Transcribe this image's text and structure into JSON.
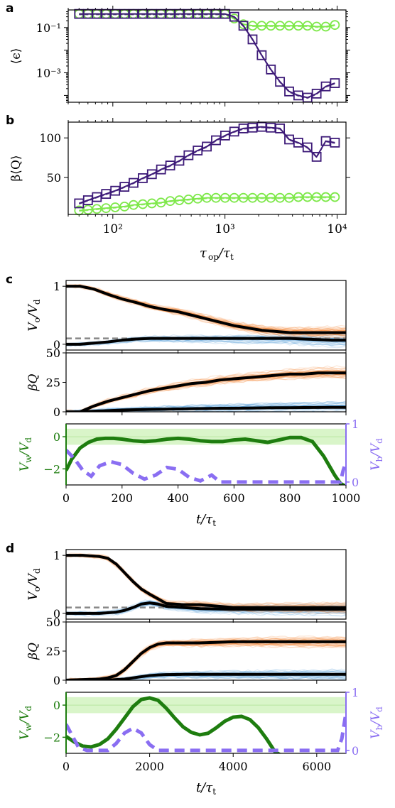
{
  "colors": {
    "green_marker": "#7ee84a",
    "purple_marker": "#3d1a78",
    "orange_traj": "#f47b20",
    "blue_traj": "#3d8fd1",
    "mean_line": "#000000",
    "dashed_gray": "#888888",
    "vw_green": "#1e7d0f",
    "vb_purple": "#8a6ef2",
    "band_green": "#d9f5c9"
  },
  "chart_data": [
    {
      "panel_label": "a",
      "type": "line",
      "xscale": "log",
      "yscale": "log",
      "ylabel": "⟨ϵ⟩",
      "ytick_labels": [
        "10⁻¹",
        "10⁻³"
      ],
      "xlim": [
        40,
        12000
      ],
      "ylim": [
        5e-05,
        0.6
      ],
      "x": [
        50,
        60,
        72,
        87,
        105,
        127,
        153,
        185,
        223,
        269,
        325,
        392,
        473,
        571,
        689,
        831,
        1003,
        1210,
        1460,
        1762,
        2126,
        2566,
        3096,
        3736,
        4508,
        5440,
        6564,
        7920,
        9557
      ],
      "series": [
        {
          "name": "",
          "marker": "circle",
          "color": "#7ee84a",
          "values": [
            0.4,
            0.4,
            0.4,
            0.4,
            0.4,
            0.4,
            0.4,
            0.4,
            0.4,
            0.4,
            0.4,
            0.4,
            0.4,
            0.4,
            0.4,
            0.4,
            0.4,
            0.25,
            0.14,
            0.12,
            0.12,
            0.12,
            0.12,
            0.12,
            0.12,
            0.12,
            0.11,
            0.11,
            0.13
          ]
        },
        {
          "name": "",
          "marker": "square",
          "color": "#3d1a78",
          "values": [
            0.4,
            0.4,
            0.4,
            0.4,
            0.4,
            0.4,
            0.4,
            0.4,
            0.4,
            0.4,
            0.4,
            0.4,
            0.4,
            0.4,
            0.4,
            0.4,
            0.4,
            0.3,
            0.12,
            0.03,
            0.006,
            0.0014,
            0.0004,
            0.00015,
            0.0001,
            8e-05,
            0.00012,
            0.00025,
            0.00035
          ]
        }
      ]
    },
    {
      "panel_label": "b",
      "type": "line",
      "xscale": "log",
      "ylabel": "β⟨Q⟩",
      "xlabel": "τop/τt",
      "xtick_labels": [
        "10²",
        "10³",
        "10⁴"
      ],
      "yticks": [
        50,
        100
      ],
      "xlim": [
        40,
        12000
      ],
      "ylim": [
        3,
        120
      ],
      "x": [
        50,
        60,
        72,
        87,
        105,
        127,
        153,
        185,
        223,
        269,
        325,
        392,
        473,
        571,
        689,
        831,
        1003,
        1210,
        1460,
        1762,
        2126,
        2566,
        3096,
        3736,
        4508,
        5440,
        6564,
        7920,
        9557
      ],
      "series": [
        {
          "name": "",
          "marker": "circle",
          "color": "#7ee84a",
          "values": [
            8,
            9,
            10,
            11,
            12,
            13,
            15,
            16,
            17,
            18,
            20,
            21,
            22,
            23,
            24,
            24,
            24,
            24,
            24,
            24,
            24,
            24,
            24,
            24,
            25,
            25,
            25,
            25,
            25
          ]
        },
        {
          "name": "",
          "marker": "square",
          "color": "#3d1a78",
          "values": [
            17,
            21,
            25,
            29,
            33,
            38,
            43,
            49,
            54,
            60,
            65,
            71,
            78,
            84,
            89,
            97,
            103,
            108,
            112,
            113,
            114,
            113,
            112,
            98,
            94,
            88,
            76,
            96,
            94
          ]
        }
      ]
    },
    {
      "panel_label": "c",
      "type": "line",
      "subpanels": [
        {
          "ylabel": "Vo/Vd",
          "yticks": [
            0,
            1
          ],
          "ylim": [
            -0.1,
            1.1
          ],
          "x": [
            0,
            50,
            100,
            150,
            200,
            250,
            300,
            350,
            400,
            450,
            500,
            550,
            600,
            650,
            700,
            750,
            800,
            850,
            900,
            950,
            1000
          ],
          "mean_orange": [
            1.0,
            1.0,
            0.95,
            0.86,
            0.78,
            0.72,
            0.65,
            0.6,
            0.56,
            0.5,
            0.44,
            0.38,
            0.32,
            0.28,
            0.24,
            0.22,
            0.2,
            0.2,
            0.2,
            0.2,
            0.2
          ],
          "mean_blue": [
            0.0,
            0.0,
            0.02,
            0.04,
            0.07,
            0.09,
            0.1,
            0.1,
            0.1,
            0.1,
            0.1,
            0.1,
            0.1,
            0.1,
            0.1,
            0.1,
            0.1,
            0.09,
            0.08,
            0.07,
            0.07
          ],
          "dashed_level": 0.1
        },
        {
          "ylabel": "βQ",
          "yticks": [
            0,
            25,
            50
          ],
          "ylim": [
            0,
            50
          ],
          "x": [
            0,
            50,
            100,
            150,
            200,
            250,
            300,
            350,
            400,
            450,
            500,
            550,
            600,
            650,
            700,
            750,
            800,
            850,
            900,
            950,
            1000
          ],
          "mean_orange": [
            0,
            0,
            5,
            9,
            12,
            15,
            18,
            20,
            22,
            24,
            25,
            27,
            28,
            29,
            30,
            31,
            32,
            32,
            33,
            33,
            33
          ],
          "mean_blue": [
            0,
            0,
            0.5,
            1,
            1.5,
            1.8,
            2,
            2.2,
            2.4,
            2.6,
            2.8,
            3,
            3,
            3.2,
            3.3,
            3.5,
            3.5,
            3.6,
            3.7,
            3.8,
            3.8
          ]
        },
        {
          "ylabel": "Vw/Vd",
          "ylabel_right": "Vb/Vd",
          "yticks": [
            -2,
            0
          ],
          "yticks_right": [
            0,
            1
          ],
          "ylim": [
            -3.0,
            0.8
          ],
          "ylim_right": [
            -0.05,
            1.0
          ],
          "band": [
            -0.5,
            0.5
          ],
          "xlabel": "t/τt",
          "xticks": [
            0,
            200,
            400,
            600,
            800,
            1000
          ],
          "xlim": [
            0,
            1000
          ],
          "vw_x": [
            0,
            20,
            50,
            80,
            110,
            140,
            170,
            200,
            240,
            280,
            320,
            360,
            400,
            440,
            480,
            520,
            560,
            600,
            640,
            680,
            720,
            760,
            800,
            840,
            880,
            920,
            960,
            980,
            1000
          ],
          "vw": [
            -2.1,
            -1.4,
            -0.7,
            -0.35,
            -0.15,
            -0.1,
            -0.1,
            -0.15,
            -0.25,
            -0.3,
            -0.25,
            -0.15,
            -0.1,
            -0.15,
            -0.25,
            -0.3,
            -0.3,
            -0.2,
            -0.15,
            -0.25,
            -0.35,
            -0.2,
            -0.05,
            -0.05,
            -0.3,
            -1.2,
            -2.4,
            -2.9,
            -3.1
          ],
          "vb_x": [
            0,
            30,
            60,
            90,
            120,
            160,
            200,
            240,
            280,
            320,
            360,
            400,
            440,
            480,
            520,
            550,
            600,
            700,
            800,
            900,
            980,
            990,
            1000
          ],
          "vb": [
            0.55,
            0.4,
            0.2,
            0.1,
            0.28,
            0.35,
            0.3,
            0.15,
            0.05,
            0.12,
            0.25,
            0.22,
            0.08,
            0.02,
            0.12,
            0.0,
            0.0,
            0.0,
            0.0,
            0.0,
            0.0,
            0.2,
            0.35
          ]
        }
      ]
    },
    {
      "panel_label": "d",
      "type": "line",
      "subpanels": [
        {
          "ylabel": "Vo/Vd",
          "yticks": [
            0,
            1
          ],
          "ylim": [
            -0.1,
            1.1
          ],
          "x": [
            0,
            400,
            800,
            1000,
            1200,
            1400,
            1600,
            1800,
            2000,
            2200,
            2400,
            2800,
            3200,
            4000,
            5000,
            6000,
            6700
          ],
          "mean_orange": [
            1.0,
            1.0,
            0.98,
            0.95,
            0.85,
            0.7,
            0.55,
            0.42,
            0.33,
            0.25,
            0.17,
            0.15,
            0.15,
            0.1,
            0.1,
            0.1,
            0.1
          ],
          "mean_blue": [
            0.0,
            0.0,
            0.0,
            0.01,
            0.02,
            0.05,
            0.1,
            0.16,
            0.18,
            0.16,
            0.12,
            0.1,
            0.08,
            0.07,
            0.07,
            0.07,
            0.07
          ],
          "dashed_level": 0.1
        },
        {
          "ylabel": "βQ",
          "yticks": [
            0,
            25,
            50
          ],
          "ylim": [
            0,
            50
          ],
          "x": [
            0,
            400,
            800,
            1000,
            1200,
            1400,
            1600,
            1800,
            2000,
            2200,
            2400,
            2800,
            3200,
            4000,
            5000,
            6000,
            6700
          ],
          "mean_orange": [
            0,
            0.5,
            1,
            2,
            4,
            9,
            16,
            23,
            28,
            31,
            32,
            32,
            32,
            33,
            33,
            33,
            33
          ],
          "mean_blue": [
            0,
            0,
            0,
            0,
            0.5,
            1,
            2,
            3,
            4,
            4.5,
            4.8,
            5,
            5,
            5,
            5,
            5,
            5
          ]
        },
        {
          "ylabel": "Vw/Vd",
          "ylabel_right": "Vb/Vd",
          "yticks": [
            -2,
            0
          ],
          "yticks_right": [
            0,
            1
          ],
          "ylim": [
            -3.0,
            0.8
          ],
          "ylim_right": [
            -0.05,
            1.0
          ],
          "band": [
            -0.5,
            0.5
          ],
          "xlabel": "t/τt",
          "xticks": [
            0,
            2000,
            4000,
            6000
          ],
          "xlim": [
            0,
            6700
          ],
          "vw_x": [
            0,
            200,
            400,
            600,
            800,
            1000,
            1200,
            1400,
            1600,
            1800,
            2000,
            2200,
            2400,
            2600,
            2800,
            3000,
            3200,
            3400,
            3600,
            3800,
            4000,
            4200,
            4400,
            4600,
            4800,
            5000,
            5200,
            6700
          ],
          "vw": [
            -1.95,
            -2.3,
            -2.55,
            -2.6,
            -2.45,
            -2.1,
            -1.5,
            -0.8,
            -0.1,
            0.35,
            0.45,
            0.3,
            -0.2,
            -0.8,
            -1.35,
            -1.7,
            -1.85,
            -1.75,
            -1.4,
            -1.0,
            -0.75,
            -0.7,
            -0.9,
            -1.4,
            -2.1,
            -2.9,
            -3.2,
            -3.2
          ],
          "vb_x": [
            0,
            150,
            300,
            500,
            800,
            1000,
            1200,
            1400,
            1600,
            1800,
            2000,
            2200,
            2400,
            2600,
            3000,
            4000,
            5000,
            6000,
            6500,
            6600,
            6700
          ],
          "vb": [
            0.45,
            0.25,
            0.05,
            0.0,
            0.0,
            0.0,
            0.12,
            0.3,
            0.38,
            0.3,
            0.1,
            0.0,
            0.0,
            0.0,
            0.0,
            0.0,
            0.0,
            0.0,
            0.0,
            0.2,
            0.65
          ]
        }
      ]
    }
  ]
}
